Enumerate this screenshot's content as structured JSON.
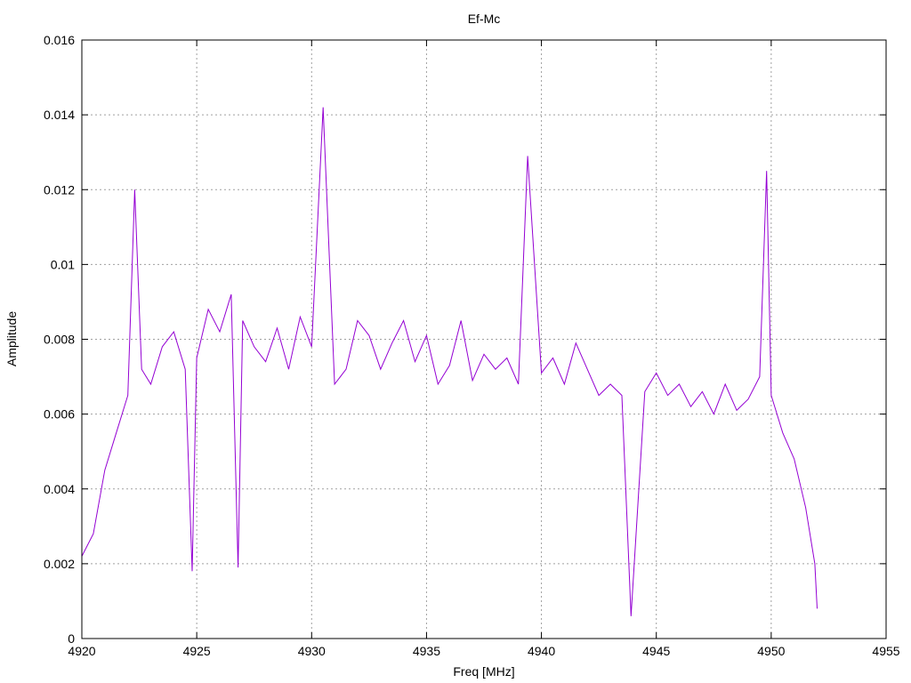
{
  "chart_data": {
    "type": "line",
    "title": "Ef-Mc",
    "xlabel": "Freq [MHz]",
    "ylabel": "Amplitude",
    "xlim": [
      4920,
      4955
    ],
    "ylim": [
      0,
      0.016
    ],
    "xticks": [
      "4920",
      "4925",
      "4930",
      "4935",
      "4940",
      "4945",
      "4950",
      "4955"
    ],
    "yticks": [
      "0",
      "0.002",
      "0.004",
      "0.006",
      "0.008",
      "0.01",
      "0.012",
      "0.014",
      "0.016"
    ],
    "grid": true,
    "series": [
      {
        "color": "#9400d3",
        "x": [
          4920.0,
          4920.5,
          4921.0,
          4921.5,
          4922.0,
          4922.3,
          4922.6,
          4923.0,
          4923.5,
          4924.0,
          4924.5,
          4924.8,
          4925.0,
          4925.5,
          4926.0,
          4926.5,
          4926.8,
          4927.0,
          4927.5,
          4928.0,
          4928.5,
          4929.0,
          4929.5,
          4930.0,
          4930.5,
          4931.0,
          4931.5,
          4932.0,
          4932.5,
          4933.0,
          4933.5,
          4934.0,
          4934.5,
          4935.0,
          4935.5,
          4936.0,
          4936.5,
          4937.0,
          4937.5,
          4938.0,
          4938.5,
          4939.0,
          4939.4,
          4940.0,
          4940.5,
          4941.0,
          4941.5,
          4942.0,
          4942.5,
          4943.0,
          4943.5,
          4943.9,
          4944.5,
          4945.0,
          4945.5,
          4946.0,
          4946.5,
          4947.0,
          4947.5,
          4948.0,
          4948.5,
          4949.0,
          4949.5,
          4949.8,
          4950.0,
          4950.5,
          4951.0,
          4951.5,
          4951.9,
          4952.0
        ],
        "y": [
          0.0022,
          0.0028,
          0.0045,
          0.0055,
          0.0065,
          0.012,
          0.0072,
          0.0068,
          0.0078,
          0.0082,
          0.0072,
          0.0018,
          0.0075,
          0.0088,
          0.0082,
          0.0092,
          0.0019,
          0.0085,
          0.0078,
          0.0074,
          0.0083,
          0.0072,
          0.0086,
          0.0078,
          0.0142,
          0.0068,
          0.0072,
          0.0085,
          0.0081,
          0.0072,
          0.0079,
          0.0085,
          0.0074,
          0.0081,
          0.0068,
          0.0073,
          0.0085,
          0.0069,
          0.0076,
          0.0072,
          0.0075,
          0.0068,
          0.0129,
          0.0071,
          0.0075,
          0.0068,
          0.0079,
          0.0072,
          0.0065,
          0.0068,
          0.0065,
          0.0006,
          0.0066,
          0.0071,
          0.0065,
          0.0068,
          0.0062,
          0.0066,
          0.006,
          0.0068,
          0.0061,
          0.0064,
          0.007,
          0.0125,
          0.0065,
          0.0055,
          0.0048,
          0.0035,
          0.002,
          0.0008
        ]
      }
    ]
  }
}
